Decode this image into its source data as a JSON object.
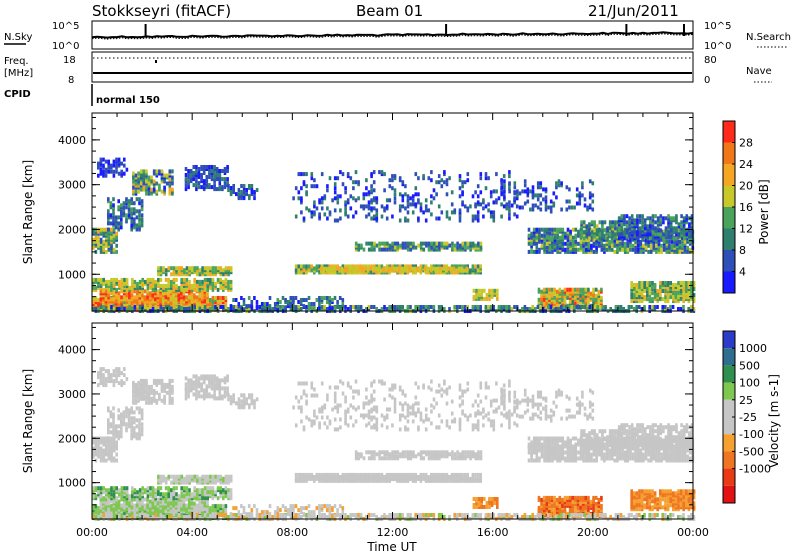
{
  "header": {
    "station": "Stokkseyri (fitACF)",
    "beam": "Beam 01",
    "date": "21/Jun/2011"
  },
  "top_panels": {
    "nsky_label": "N.Sky",
    "nsearch_label": "N.Search",
    "noise_ticks": [
      "10^5",
      "10^0"
    ],
    "freq_label": "Freq.",
    "freq_unit": "[MHz]",
    "freq_ticks": [
      "18",
      "8"
    ],
    "nave_label": "Nave",
    "nave_ticks": [
      "80",
      "0"
    ],
    "cpid_label": "CPID",
    "cpid_value": "normal 150"
  },
  "colors": {
    "power_scale": [
      "#1a1aff",
      "#2f4fb8",
      "#2f7f6f",
      "#4aa35a",
      "#c8c82a",
      "#f5a623",
      "#f07818",
      "#ff2a1a"
    ],
    "velocity_scale": [
      "#2b3cc9",
      "#2e6f8f",
      "#2f8f4f",
      "#7ec850",
      "#c6c6c6",
      "#c6c6c6",
      "#f5a030",
      "#ef7520",
      "#e83a14",
      "#e31212"
    ]
  },
  "chart_data": [
    {
      "type": "heatmap",
      "name": "power-panel",
      "xlabel": "Time UT",
      "ylabel": "Slant Range [km]",
      "x_range_hours": [
        0,
        24
      ],
      "ylim": [
        180,
        4600
      ],
      "y_ticks": [
        1000,
        2000,
        3000,
        4000
      ],
      "colorbar": {
        "label": "Power [dB]",
        "range": [
          0,
          32
        ],
        "ticks": [
          4,
          8,
          12,
          16,
          20,
          24,
          28
        ]
      }
    },
    {
      "type": "heatmap",
      "name": "velocity-panel",
      "xlabel": "Time UT",
      "ylabel": "Slant Range [km]",
      "x_range_hours": [
        0,
        24
      ],
      "ylim": [
        180,
        4600
      ],
      "y_ticks": [
        1000,
        2000,
        3000,
        4000
      ],
      "colorbar": {
        "label": "Velocity [m s-1]",
        "ticks": [
          1000,
          500,
          100,
          25,
          -25,
          -100,
          -500,
          -1000
        ]
      }
    }
  ],
  "x_ticks": [
    "00:00",
    "04:00",
    "08:00",
    "12:00",
    "16:00",
    "20:00",
    "00:00"
  ]
}
